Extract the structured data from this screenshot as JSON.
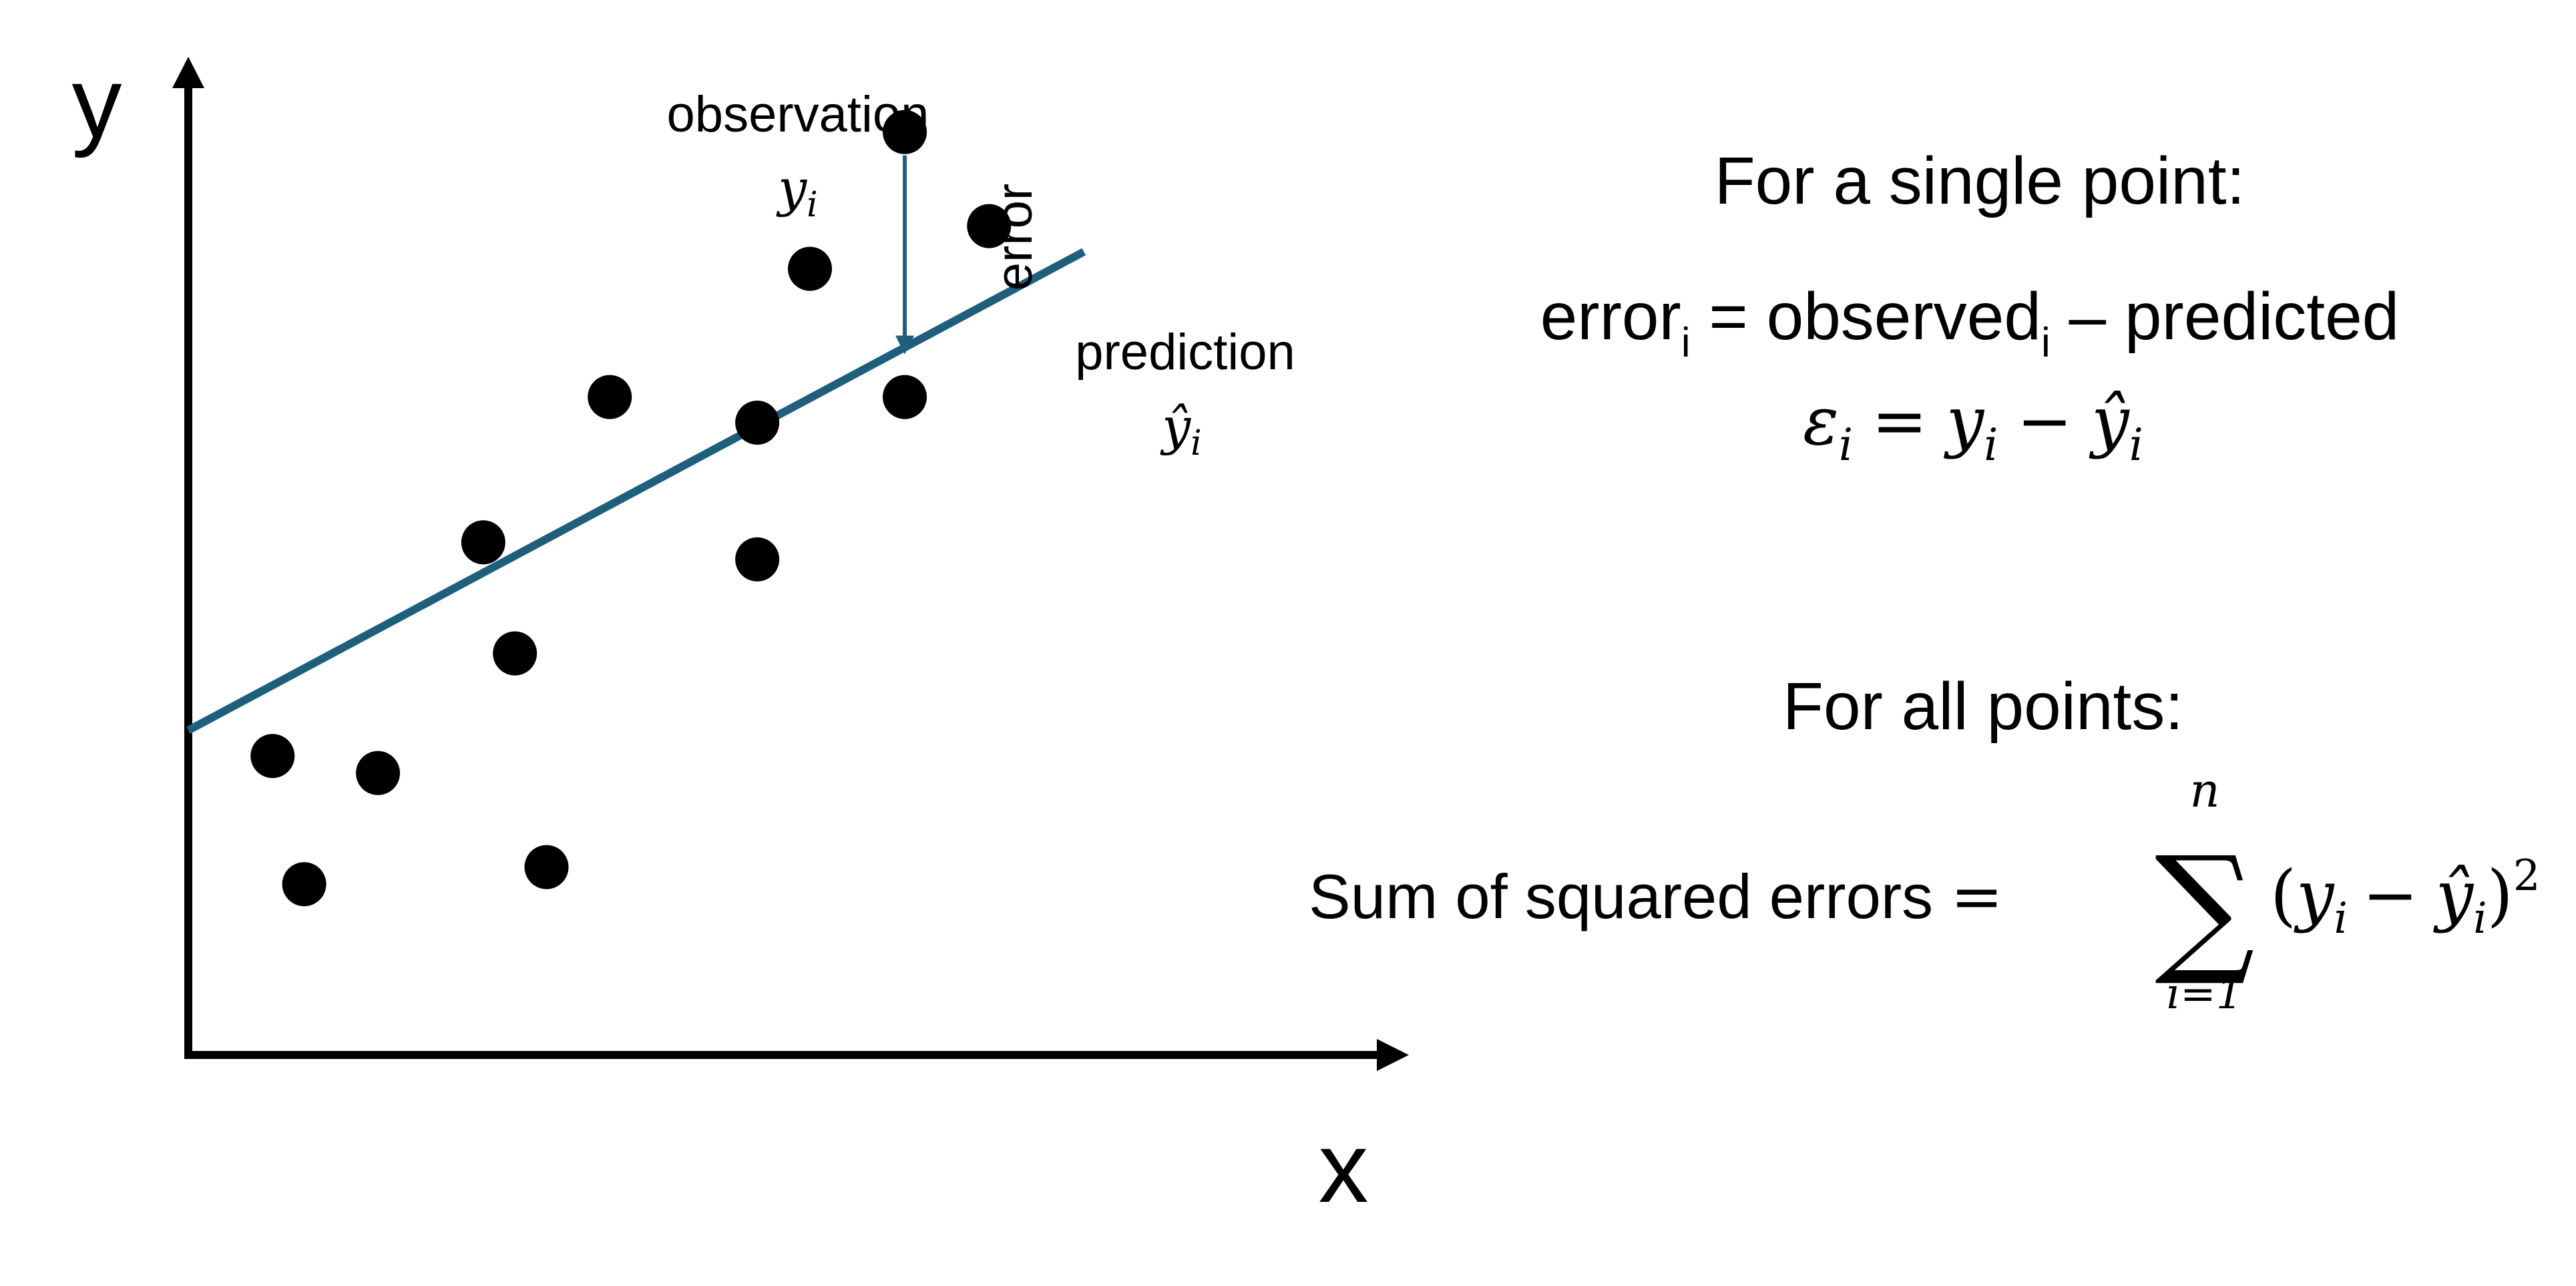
{
  "colors": {
    "ink": "#000000",
    "regression_line": "#1f5f7e",
    "background": "#ffffff"
  },
  "plot": {
    "y_axis_label": "y",
    "x_axis_label": "x",
    "observation_label": "observation",
    "observation_symbol": "y",
    "observation_subscript": "i",
    "prediction_label": "prediction",
    "prediction_symbol": "ŷ",
    "prediction_subscript": "i",
    "error_label": "error"
  },
  "chart_data": {
    "type": "scatter",
    "title": "",
    "xlabel": "x",
    "ylabel": "y",
    "xlim": [
      0,
      100
    ],
    "ylim": [
      0,
      100
    ],
    "grid": false,
    "legend": "none",
    "points": [
      {
        "x": 8,
        "y": 26
      },
      {
        "x": 11,
        "y": 11
      },
      {
        "x": 18,
        "y": 24
      },
      {
        "x": 28,
        "y": 51
      },
      {
        "x": 31,
        "y": 38
      },
      {
        "x": 34,
        "y": 13
      },
      {
        "x": 40,
        "y": 68
      },
      {
        "x": 54,
        "y": 49
      },
      {
        "x": 54,
        "y": 65
      },
      {
        "x": 59,
        "y": 83
      },
      {
        "x": 68,
        "y": 68
      },
      {
        "x": 68,
        "y": 99
      },
      {
        "x": 76,
        "y": 88
      }
    ],
    "regression_line": {
      "x": [
        0,
        85
      ],
      "y": [
        29,
        85
      ]
    },
    "highlighted_point": {
      "x": 68,
      "y": 99,
      "predicted_y": 73
    }
  },
  "single_point": {
    "heading": "For a single point:",
    "eq1_error": "error",
    "eq1_error_sub": "i",
    "eq1_middle": " = observed",
    "eq1_observed_sub": "i",
    "eq1_tail": " – predicted",
    "eq2_epsilon": "ε",
    "eq2_sub1": "i",
    "eq2_eq": "=",
    "eq2_y": "y",
    "eq2_sub2": "i",
    "eq2_minus": "−",
    "eq2_yhat": "ŷ",
    "eq2_sub3": "i"
  },
  "all_points": {
    "heading": "For all points:",
    "sse_label": "Sum of squared errors",
    "sse_eq": "=",
    "sum_symbol": "∑",
    "sum_upper": "n",
    "sum_lower": "i=1",
    "open_paren": "(",
    "term_y": "y",
    "term_y_sub": "i",
    "term_minus": "−",
    "term_yhat": "ŷ",
    "term_yhat_sub": "i",
    "close_paren": ")",
    "exponent": "2"
  }
}
